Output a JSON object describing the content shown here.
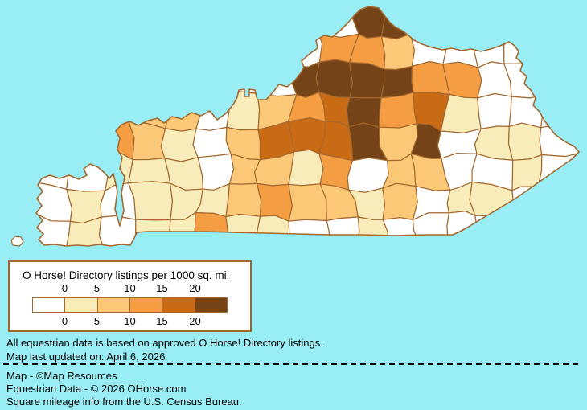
{
  "legend": {
    "title": "O Horse! Directory listings per 1000 sq. mi.",
    "ticks": [
      "0",
      "5",
      "10",
      "15",
      "20"
    ]
  },
  "notes": {
    "line1": "All equestrian data is based on approved O Horse! Directory listings.",
    "line2": "Map last updated on: April 6, 2026"
  },
  "credits": {
    "line1": "Map - ©Map Resources",
    "line2": "Equestrian Data - © 2026 OHorse.com",
    "line3": "Square mileage info from the U.S. Census Bureau."
  },
  "colors": {
    "water": "#99EEF5",
    "county_border": "#A4682F",
    "legend_border": "#A4682F",
    "island_fill": "#FFFFFF",
    "text": "#000000"
  },
  "chart_data": {
    "type": "heatmap",
    "subtype": "choropleth-map",
    "region": "Kentucky counties",
    "metric": "O Horse! Directory listings per 1000 sq. mi.",
    "scale_breaks": [
      0,
      5,
      10,
      15,
      20
    ],
    "bucket_labels": [
      "0",
      "0-5",
      "5-10",
      "10-15",
      "15-20",
      "20+"
    ],
    "palette": [
      "#FFFFFF",
      "#F8EDBA",
      "#FBC877",
      "#F49D43",
      "#C96A15",
      "#744317"
    ],
    "legend_position": "bottom-left",
    "density_grid_note": "bucket index per map cell, 8 rows (north to south) x 17 cols (west to east); high values cluster in north-central Kentucky, low in the east",
    "density_grid": [
      [
        0,
        0,
        0,
        0,
        0,
        0,
        0,
        0,
        0,
        0,
        5,
        5,
        0,
        0,
        0,
        0,
        0
      ],
      [
        0,
        0,
        0,
        0,
        0,
        0,
        0,
        0,
        0,
        3,
        3,
        2,
        0,
        0,
        0,
        0,
        0
      ],
      [
        0,
        0,
        0,
        0,
        0,
        0,
        0,
        0,
        5,
        5,
        5,
        5,
        3,
        3,
        0,
        0,
        0
      ],
      [
        0,
        0,
        0,
        2,
        2,
        0,
        1,
        2,
        3,
        4,
        5,
        3,
        4,
        1,
        0,
        0,
        0
      ],
      [
        0,
        0,
        3,
        2,
        1,
        0,
        2,
        4,
        4,
        4,
        5,
        2,
        5,
        0,
        1,
        1,
        0
      ],
      [
        0,
        0,
        1,
        1,
        1,
        0,
        2,
        2,
        1,
        3,
        0,
        2,
        2,
        0,
        0,
        1,
        0
      ],
      [
        0,
        1,
        0,
        1,
        1,
        1,
        2,
        3,
        2,
        2,
        1,
        2,
        0,
        1,
        1,
        0,
        0
      ],
      [
        0,
        1,
        0,
        1,
        1,
        3,
        1,
        1,
        0,
        0,
        1,
        0,
        0,
        0,
        0,
        0,
        0
      ]
    ]
  }
}
